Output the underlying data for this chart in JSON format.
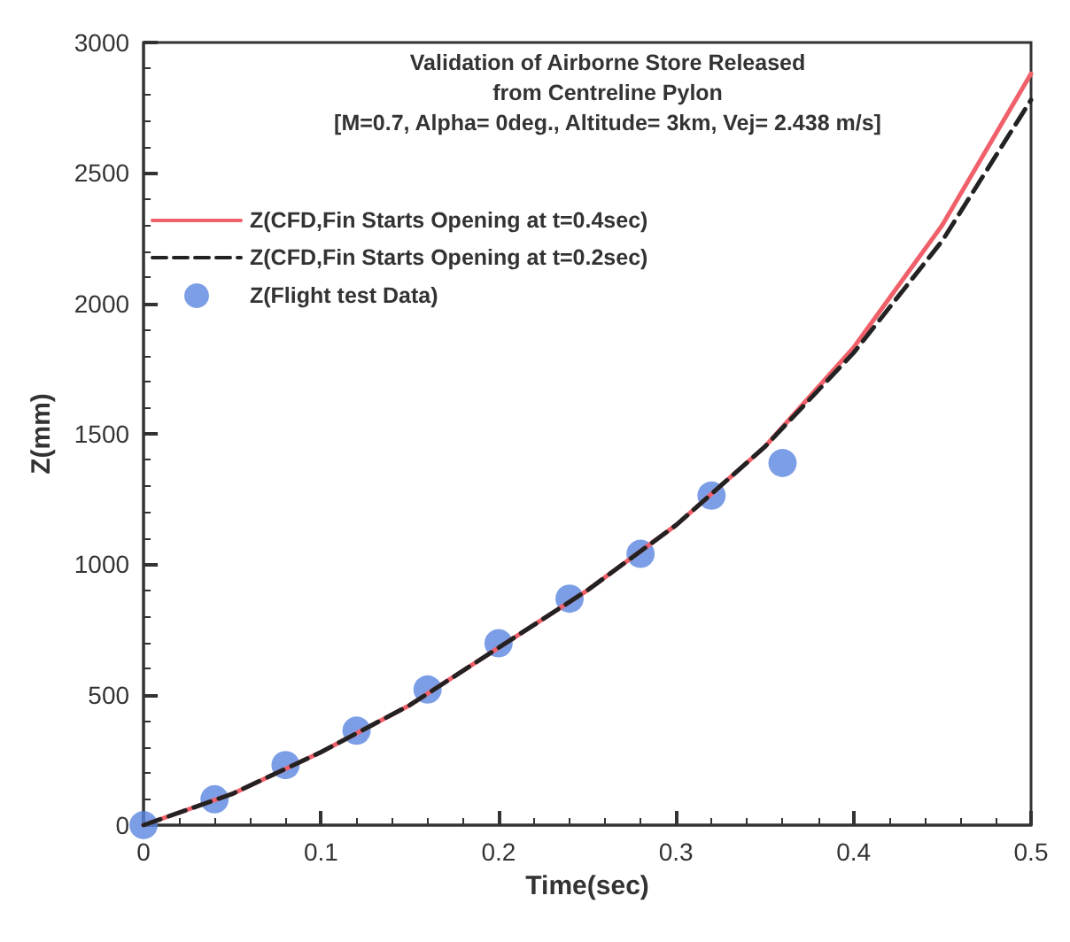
{
  "chart_data": {
    "type": "line",
    "title": "Validation of Airborne Store Released\nfrom Centreline Pylon\n[M=0.7, Alpha= 0deg., Altitude= 3km, Vej= 2.438 m/s]",
    "xlabel": "Time(sec)",
    "ylabel": "Z(mm)",
    "series": [
      {
        "name": "Z(CFD,Fin Starts Opening at t=0.4sec)",
        "color": "#f0606a",
        "line_style": "solid",
        "marker": "none",
        "x": [
          0,
          0.05,
          0.1,
          0.15,
          0.2,
          0.25,
          0.3,
          0.35,
          0.4,
          0.45,
          0.5
        ],
        "values": [
          0,
          120,
          280,
          460,
          680,
          900,
          1150,
          1450,
          1830,
          2300,
          2880
        ]
      },
      {
        "name": "Z(CFD,Fin Starts Opening at t=0.2sec)",
        "color": "#222222",
        "line_style": "dashed",
        "marker": "none",
        "x": [
          0,
          0.05,
          0.1,
          0.15,
          0.2,
          0.25,
          0.3,
          0.35,
          0.4,
          0.45,
          0.5
        ],
        "values": [
          0,
          120,
          280,
          460,
          680,
          900,
          1150,
          1450,
          1810,
          2240,
          2780
        ]
      },
      {
        "name": "Z(Flight test Data)",
        "type": "scatter",
        "color": "#5b86e0",
        "marker": "circle",
        "x": [
          0,
          0.04,
          0.08,
          0.12,
          0.16,
          0.2,
          0.24,
          0.28,
          0.32,
          0.36
        ],
        "values": [
          0,
          99,
          230,
          362,
          520,
          697,
          868,
          1040,
          1263,
          1388
        ]
      }
    ],
    "xlim": [
      0,
      0.5
    ],
    "xticks": [
      0,
      0.1,
      0.2,
      0.3,
      0.4,
      0.5
    ],
    "ylim": [
      0,
      3000
    ],
    "yticks": [
      0,
      500,
      1000,
      1500,
      2000,
      2500,
      3000
    ],
    "grid": false,
    "legend": "top left"
  }
}
